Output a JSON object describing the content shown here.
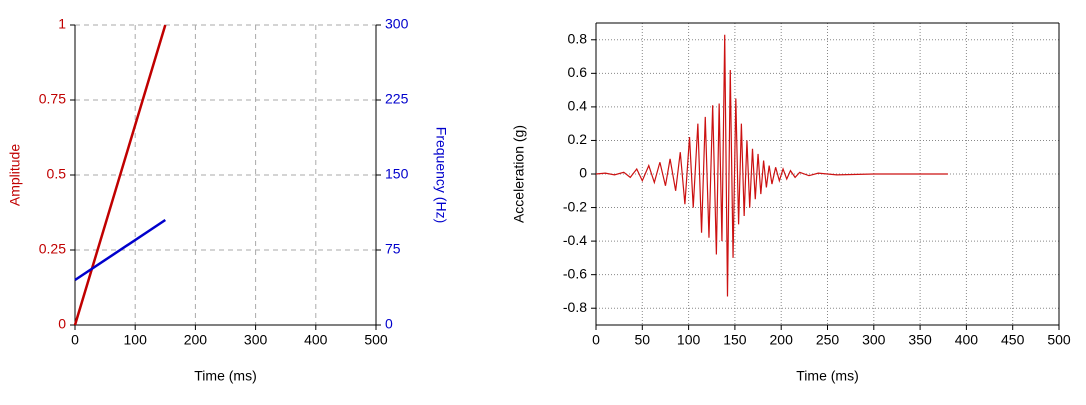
{
  "chart_data": [
    {
      "type": "line",
      "xlabel": "Time (ms)",
      "ylabel": "Amplitude",
      "y2label": "Frequency (Hz)",
      "xlim": [
        0,
        500
      ],
      "xticks": [
        0,
        100,
        200,
        300,
        400,
        500
      ],
      "ylim": [
        0,
        1
      ],
      "yticks": [
        0,
        0.25,
        0.5,
        0.75,
        1
      ],
      "y2lim": [
        0,
        300
      ],
      "y2ticks": [
        0,
        75,
        150,
        225,
        300
      ],
      "grid": "dashed",
      "ylabel_color": "#c00000",
      "y2label_color": "#0000cc",
      "series": [
        {
          "name": "Amplitude",
          "color": "#c00000",
          "x": [
            0,
            150
          ],
          "values": [
            0,
            1
          ]
        },
        {
          "name": "Frequency",
          "color": "#0000cc",
          "axis": "y2",
          "x": [
            0,
            150
          ],
          "values": [
            45,
            105
          ]
        }
      ]
    },
    {
      "type": "line",
      "xlabel": "Time (ms)",
      "ylabel": "Acceleration (g)",
      "xlim": [
        0,
        500
      ],
      "xticks": [
        0,
        50,
        100,
        150,
        200,
        250,
        300,
        350,
        400,
        450,
        500
      ],
      "ylim": [
        -0.9,
        0.9
      ],
      "yticks": [
        -0.8,
        -0.6,
        -0.4,
        -0.2,
        0,
        0.2,
        0.4,
        0.6,
        0.8
      ],
      "grid": "dotted",
      "series": [
        {
          "name": "Acceleration",
          "color": "#cc1111",
          "x": [
            0,
            10,
            20,
            30,
            37,
            44,
            50,
            57,
            63,
            69,
            75,
            80,
            86,
            91,
            96,
            101,
            105,
            110,
            114,
            118,
            122,
            126,
            130,
            133,
            136,
            139,
            142,
            145,
            148,
            151,
            154,
            157,
            160,
            163,
            166,
            169,
            172,
            175,
            178,
            181,
            184,
            187,
            190,
            194,
            198,
            202,
            206,
            210,
            215,
            220,
            230,
            240,
            260,
            300,
            340,
            380
          ],
          "values": [
            0,
            0.005,
            -0.005,
            0.01,
            -0.02,
            0.03,
            -0.04,
            0.05,
            -0.05,
            0.07,
            -0.07,
            0.09,
            -0.1,
            0.13,
            -0.18,
            0.22,
            -0.2,
            0.3,
            -0.35,
            0.34,
            -0.38,
            0.41,
            -0.48,
            0.42,
            -0.4,
            0.83,
            -0.73,
            0.62,
            -0.5,
            0.45,
            -0.3,
            0.3,
            -0.25,
            0.2,
            -0.2,
            0.15,
            -0.15,
            0.12,
            -0.12,
            0.08,
            -0.08,
            0.05,
            -0.06,
            0.04,
            -0.04,
            0.03,
            -0.03,
            0.02,
            -0.02,
            0.01,
            -0.01,
            0.005,
            -0.005,
            0,
            0,
            0
          ]
        }
      ]
    }
  ]
}
